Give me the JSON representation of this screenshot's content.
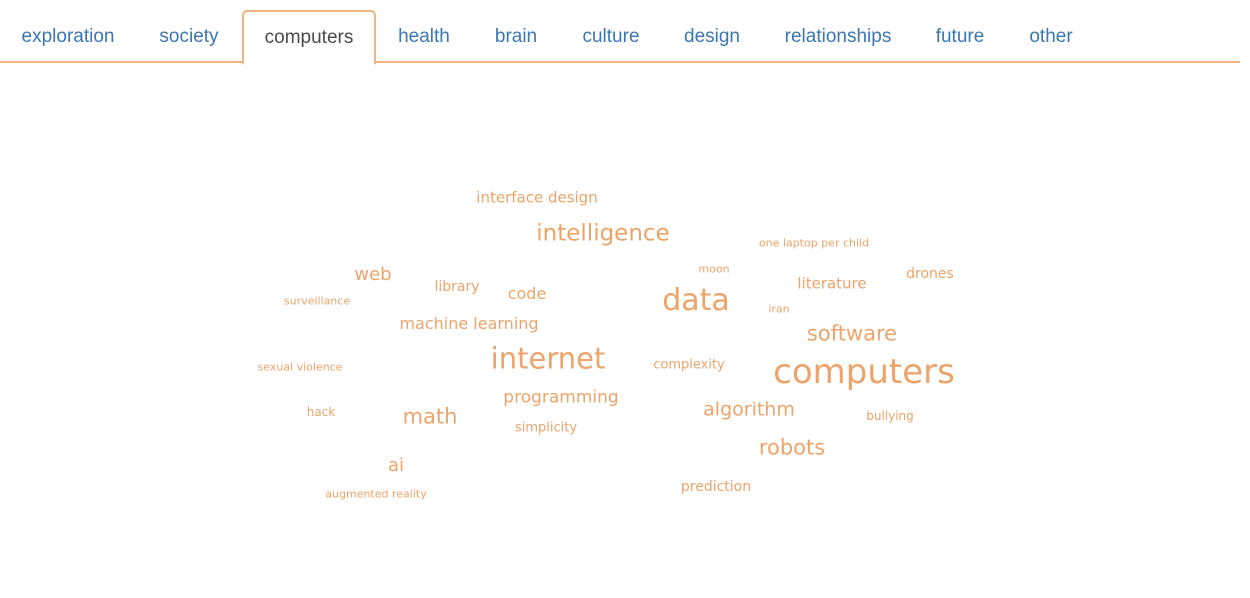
{
  "tabs": [
    {
      "label": "exploration"
    },
    {
      "label": "society"
    },
    {
      "label": "computers"
    },
    {
      "label": "health"
    },
    {
      "label": "brain"
    },
    {
      "label": "culture"
    },
    {
      "label": "design"
    },
    {
      "label": "relationships"
    },
    {
      "label": "future"
    },
    {
      "label": "other"
    }
  ],
  "active_tab": "computers",
  "colors": {
    "accent": "#f0b57e",
    "word": "#eda46a",
    "tab_link": "#3a77b2",
    "tab_active_text": "#4a4a4a"
  },
  "word_cloud": {
    "words": [
      {
        "text": "interface design"
      },
      {
        "text": "intelligence"
      },
      {
        "text": "one laptop per child"
      },
      {
        "text": "moon"
      },
      {
        "text": "web"
      },
      {
        "text": "library"
      },
      {
        "text": "code"
      },
      {
        "text": "data"
      },
      {
        "text": "literature"
      },
      {
        "text": "drones"
      },
      {
        "text": "surveillance"
      },
      {
        "text": "iran"
      },
      {
        "text": "machine learning"
      },
      {
        "text": "software"
      },
      {
        "text": "internet"
      },
      {
        "text": "sexual violence"
      },
      {
        "text": "complexity"
      },
      {
        "text": "computers"
      },
      {
        "text": "programming"
      },
      {
        "text": "hack"
      },
      {
        "text": "math"
      },
      {
        "text": "algorithm"
      },
      {
        "text": "bullying"
      },
      {
        "text": "simplicity"
      },
      {
        "text": "robots"
      },
      {
        "text": "ai"
      },
      {
        "text": "prediction"
      },
      {
        "text": "augmented reality"
      }
    ]
  }
}
